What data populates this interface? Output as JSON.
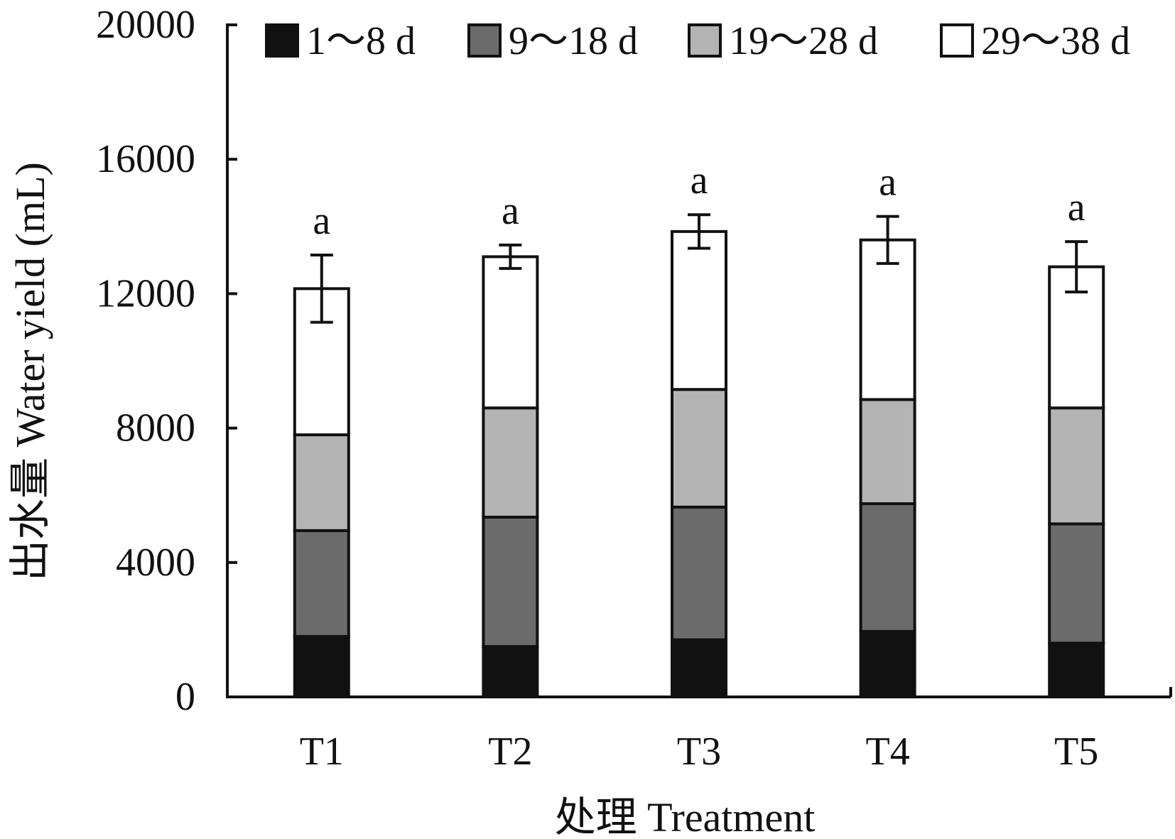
{
  "chart_data": {
    "type": "bar",
    "stacked": true,
    "title": "",
    "xlabel": "处理 Treatment",
    "ylabel": "出水量 Water yield (mL)",
    "ylim": [
      0,
      20000
    ],
    "yticks": [
      0,
      4000,
      8000,
      12000,
      16000,
      20000
    ],
    "categories": [
      "T1",
      "T2",
      "T3",
      "T4",
      "T5"
    ],
    "series": [
      {
        "name": "1～8 d",
        "color": "#111111",
        "values": [
          1800,
          1500,
          1700,
          1950,
          1600
        ]
      },
      {
        "name": "9～18 d",
        "color": "#6b6b6b",
        "values": [
          3150,
          3850,
          3950,
          3800,
          3550
        ]
      },
      {
        "name": "19～28 d",
        "color": "#b4b4b4",
        "values": [
          2850,
          3250,
          3500,
          3100,
          3450
        ]
      },
      {
        "name": "29～38 d",
        "color": "#ffffff",
        "values": [
          4350,
          4500,
          4700,
          4750,
          4200
        ]
      }
    ],
    "totals": [
      12150,
      13100,
      13850,
      13600,
      12800
    ],
    "errors": [
      1000,
      350,
      500,
      700,
      750
    ],
    "significance": [
      "a",
      "a",
      "a",
      "a",
      "a"
    ],
    "legend_position": "top-right",
    "grid": false
  }
}
